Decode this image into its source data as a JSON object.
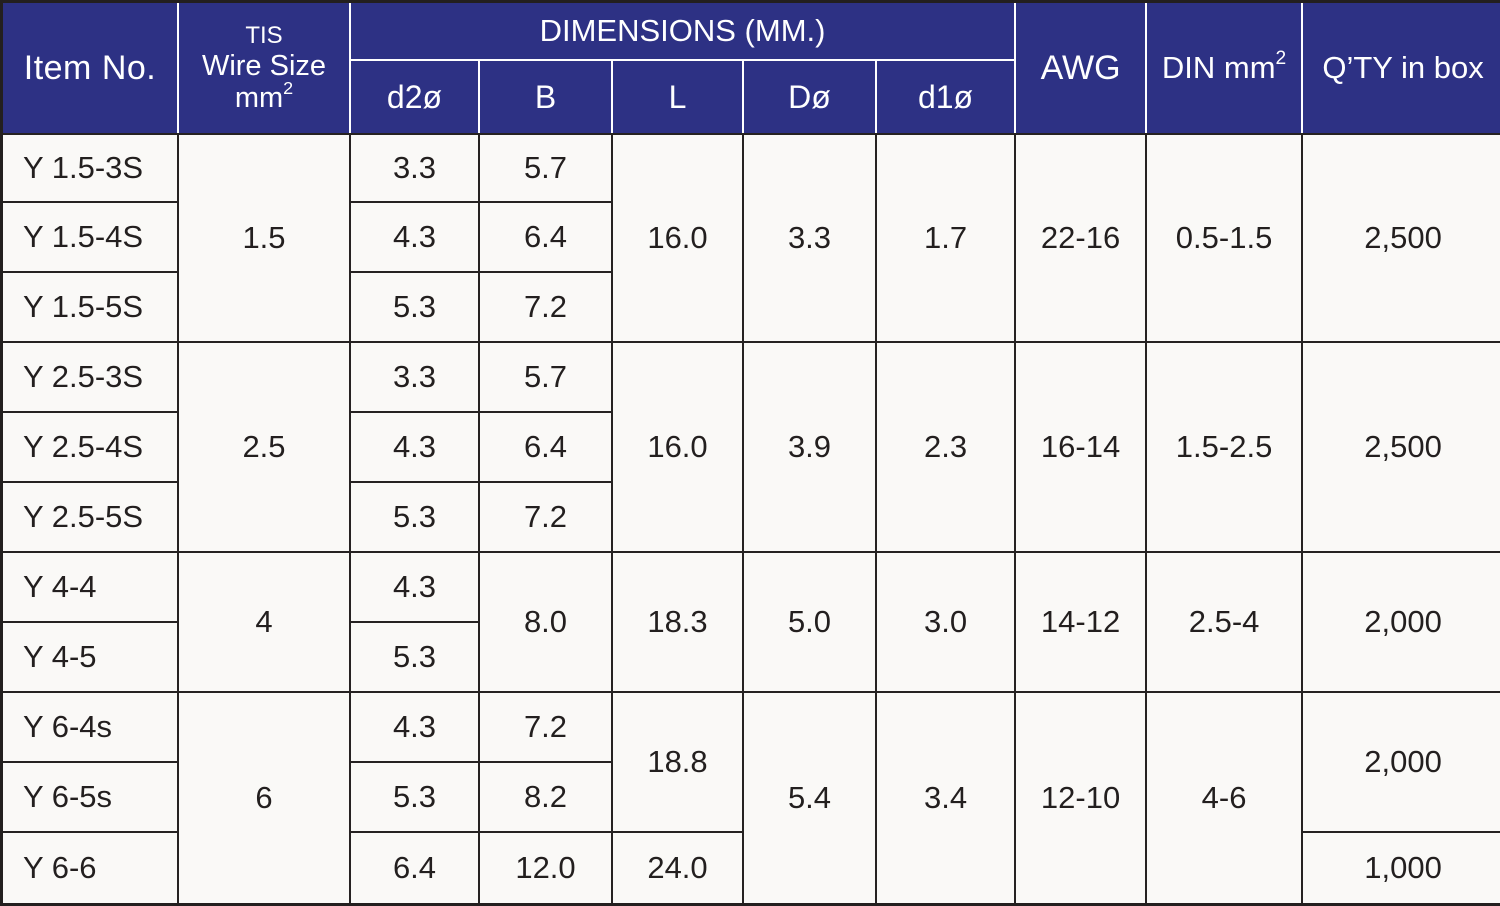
{
  "colors": {
    "header_bg": "#2d3184",
    "header_text": "#ffffff",
    "body_bg": "#faf9f7",
    "border": "#262222"
  },
  "header": {
    "item_no": "Item No.",
    "tis_line1": "TIS",
    "tis_line2": "Wire Size mm",
    "tis_sup": "2",
    "dimensions": "DIMENSIONS (MM.)",
    "dim_cols": [
      "d2ø",
      "B",
      "L",
      "Dø",
      "d1ø"
    ],
    "awg": "AWG",
    "din": "DIN mm",
    "din_sup": "2",
    "qty": "Q’TY in box"
  },
  "rows": [
    [
      {
        "c": "item",
        "t": "Y 1.5-3S"
      },
      {
        "c": "tis",
        "t": "1.5",
        "rs": 3
      },
      {
        "c": "d2",
        "t": "3.3"
      },
      {
        "c": "b",
        "t": "5.7"
      },
      {
        "c": "l",
        "t": "16.0",
        "rs": 3
      },
      {
        "c": "d",
        "t": "3.3",
        "rs": 3
      },
      {
        "c": "d1",
        "t": "1.7",
        "rs": 3
      },
      {
        "c": "awg",
        "t": "22-16",
        "rs": 3
      },
      {
        "c": "din",
        "t": "0.5-1.5",
        "rs": 3
      },
      {
        "c": "qty",
        "t": "2,500",
        "rs": 3
      }
    ],
    [
      {
        "c": "item",
        "t": "Y 1.5-4S"
      },
      {
        "c": "d2",
        "t": "4.3"
      },
      {
        "c": "b",
        "t": "6.4"
      }
    ],
    [
      {
        "c": "item",
        "t": "Y 1.5-5S"
      },
      {
        "c": "d2",
        "t": "5.3"
      },
      {
        "c": "b",
        "t": "7.2"
      }
    ],
    [
      {
        "c": "item",
        "t": "Y 2.5-3S"
      },
      {
        "c": "tis",
        "t": "2.5",
        "rs": 3
      },
      {
        "c": "d2",
        "t": "3.3"
      },
      {
        "c": "b",
        "t": "5.7"
      },
      {
        "c": "l",
        "t": "16.0",
        "rs": 3
      },
      {
        "c": "d",
        "t": "3.9",
        "rs": 3
      },
      {
        "c": "d1",
        "t": "2.3",
        "rs": 3
      },
      {
        "c": "awg",
        "t": "16-14",
        "rs": 3
      },
      {
        "c": "din",
        "t": "1.5-2.5",
        "rs": 3
      },
      {
        "c": "qty",
        "t": "2,500",
        "rs": 3
      }
    ],
    [
      {
        "c": "item",
        "t": "Y 2.5-4S"
      },
      {
        "c": "d2",
        "t": "4.3"
      },
      {
        "c": "b",
        "t": "6.4"
      }
    ],
    [
      {
        "c": "item",
        "t": "Y 2.5-5S"
      },
      {
        "c": "d2",
        "t": "5.3"
      },
      {
        "c": "b",
        "t": "7.2"
      }
    ],
    [
      {
        "c": "item",
        "t": "Y 4-4"
      },
      {
        "c": "tis",
        "t": "4",
        "rs": 2
      },
      {
        "c": "d2",
        "t": "4.3"
      },
      {
        "c": "b",
        "t": "8.0",
        "rs": 2
      },
      {
        "c": "l",
        "t": "18.3",
        "rs": 2
      },
      {
        "c": "d",
        "t": "5.0",
        "rs": 2
      },
      {
        "c": "d1",
        "t": "3.0",
        "rs": 2
      },
      {
        "c": "awg",
        "t": "14-12",
        "rs": 2
      },
      {
        "c": "din",
        "t": "2.5-4",
        "rs": 2
      },
      {
        "c": "qty",
        "t": "2,000",
        "rs": 2
      }
    ],
    [
      {
        "c": "item",
        "t": "Y 4-5"
      },
      {
        "c": "d2",
        "t": "5.3"
      }
    ],
    [
      {
        "c": "item",
        "t": "Y 6-4s"
      },
      {
        "c": "tis",
        "t": "6",
        "rs": 3
      },
      {
        "c": "d2",
        "t": "4.3"
      },
      {
        "c": "b",
        "t": "7.2"
      },
      {
        "c": "l",
        "t": "18.8",
        "rs": 2
      },
      {
        "c": "d",
        "t": "5.4",
        "rs": 3
      },
      {
        "c": "d1",
        "t": "3.4",
        "rs": 3
      },
      {
        "c": "awg",
        "t": "12-10",
        "rs": 3
      },
      {
        "c": "din",
        "t": "4-6",
        "rs": 3
      },
      {
        "c": "qty",
        "t": "2,000",
        "rs": 2
      }
    ],
    [
      {
        "c": "item",
        "t": "Y 6-5s"
      },
      {
        "c": "d2",
        "t": "5.3"
      },
      {
        "c": "b",
        "t": "8.2"
      }
    ],
    [
      {
        "c": "item",
        "t": "Y 6-6"
      },
      {
        "c": "d2",
        "t": "6.4"
      },
      {
        "c": "b",
        "t": "12.0"
      },
      {
        "c": "l",
        "t": "24.0"
      },
      {
        "c": "qty",
        "t": "1,000"
      }
    ]
  ]
}
